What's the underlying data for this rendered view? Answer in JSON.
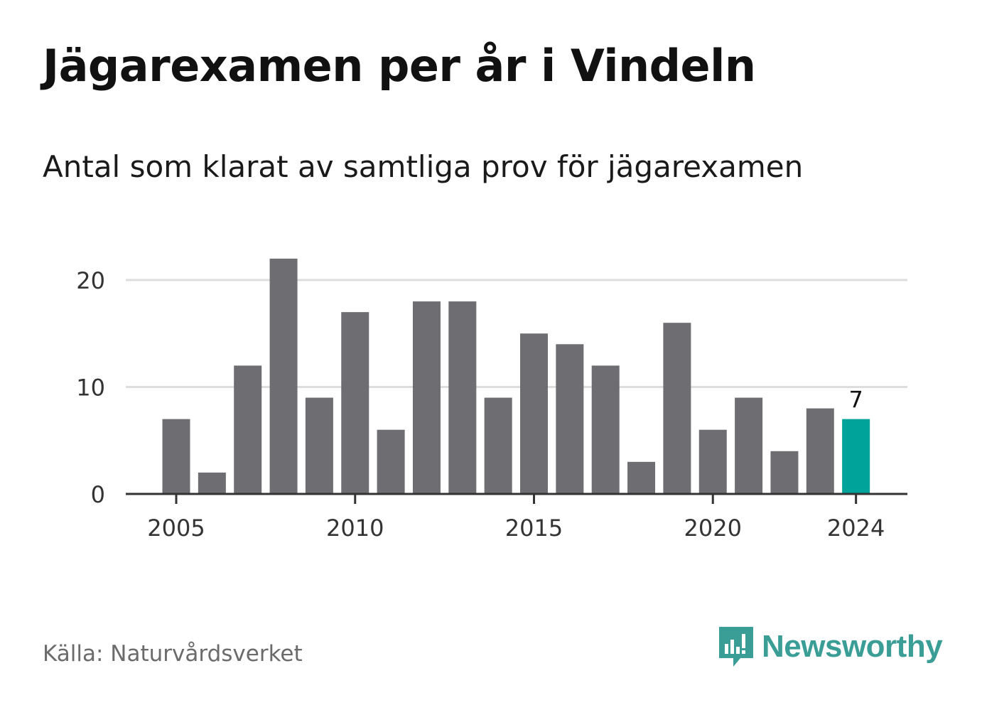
{
  "title": "Jägarexamen per år i Vindeln",
  "subtitle": "Antal som klarat av samtliga prov för jägarexamen",
  "source": "Källa: Naturvårdsverket",
  "logo": {
    "text": "Newsworthy",
    "icon": "bar-chart-speech-bubble-icon",
    "color": "#3a9e97"
  },
  "colors": {
    "bar": "#6e6d72",
    "highlight": "#00a39a",
    "grid": "#dddddd",
    "axis": "#333333"
  },
  "chart_data": {
    "type": "bar",
    "categories": [
      "2005",
      "2006",
      "2007",
      "2008",
      "2009",
      "2010",
      "2011",
      "2012",
      "2013",
      "2014",
      "2015",
      "2016",
      "2017",
      "2018",
      "2019",
      "2020",
      "2021",
      "2022",
      "2023",
      "2024"
    ],
    "values": [
      7,
      2,
      12,
      22,
      9,
      17,
      6,
      18,
      18,
      9,
      15,
      14,
      12,
      3,
      16,
      6,
      9,
      4,
      8,
      7
    ],
    "highlight": "2024",
    "highlight_label": "7",
    "x_ticks": [
      "2005",
      "2010",
      "2015",
      "2020",
      "2024"
    ],
    "y_ticks": [
      0,
      10,
      20
    ],
    "ylim": [
      0,
      22
    ],
    "xlabel": "",
    "ylabel": "",
    "grid": true
  }
}
